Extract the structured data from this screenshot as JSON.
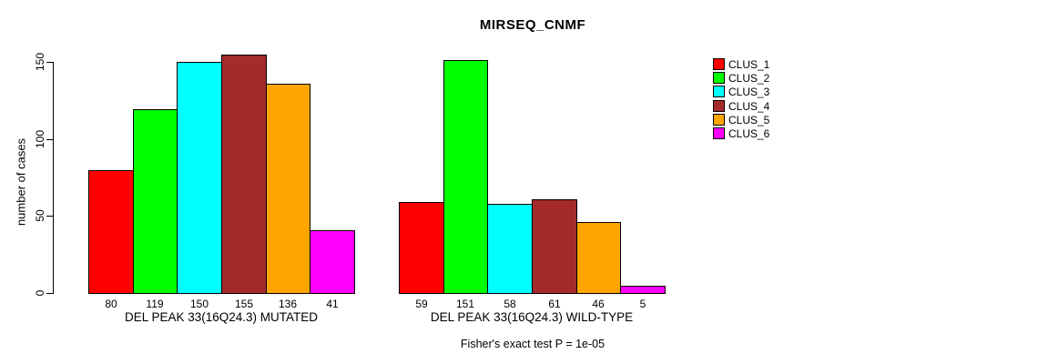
{
  "chart_data": {
    "type": "bar",
    "title": "MIRSEQ_CNMF",
    "ylabel": "number of cases",
    "ylim": [
      0,
      150
    ],
    "yticks": [
      0,
      50,
      100,
      150
    ],
    "grid": false,
    "legend_position": "right",
    "annotation": "Fisher's exact test P = 1e-05",
    "clusters": [
      {
        "name": "CLUS_1",
        "color": "#FF0000"
      },
      {
        "name": "CLUS_2",
        "color": "#00FF00"
      },
      {
        "name": "CLUS_3",
        "color": "#00FFFF"
      },
      {
        "name": "CLUS_4",
        "color": "#A52A2A"
      },
      {
        "name": "CLUS_5",
        "color": "#FFA500"
      },
      {
        "name": "CLUS_6",
        "color": "#FF00FF"
      }
    ],
    "groups": [
      {
        "label": "DEL PEAK 33(16Q24.3) MUTATED",
        "values": [
          80,
          119,
          150,
          155,
          136,
          41
        ]
      },
      {
        "label": "DEL PEAK 33(16Q24.3) WILD-TYPE",
        "values": [
          59,
          151,
          58,
          61,
          46,
          5
        ]
      }
    ]
  }
}
